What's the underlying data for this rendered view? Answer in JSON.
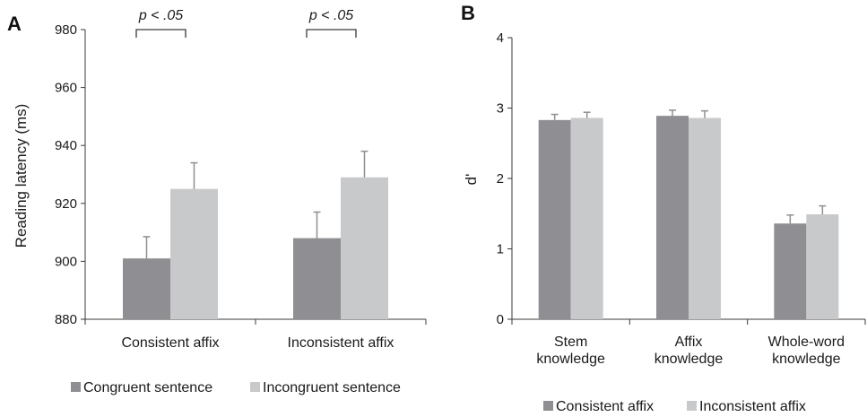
{
  "colors": {
    "dark": "#8f8f93",
    "light": "#c8c9cb",
    "axis": "#3a3a3a",
    "err": "#8f8f93"
  },
  "chart_data": [
    {
      "panel": "A",
      "type": "bar",
      "ylabel": "Reading latency (ms)",
      "ylim": [
        880,
        980
      ],
      "yticks": [
        880,
        900,
        920,
        940,
        960,
        980
      ],
      "categories": [
        "Consistent affix",
        "Inconsistent affix"
      ],
      "series": [
        {
          "name": "Congruent sentence",
          "values": [
            901,
            908
          ],
          "errors": [
            7.5,
            9
          ]
        },
        {
          "name": "Incongruent sentence",
          "values": [
            925,
            929
          ],
          "errors": [
            9,
            9
          ]
        }
      ],
      "annotations": [
        "p < .05",
        "p < .05"
      ],
      "legend": "bottom",
      "grid": false
    },
    {
      "panel": "B",
      "type": "bar",
      "ylabel": "d'",
      "ylim": [
        0,
        4
      ],
      "yticks": [
        0,
        1,
        2,
        3,
        4
      ],
      "categories": [
        [
          "Stem",
          "knowledge"
        ],
        [
          "Affix",
          "knowledge"
        ],
        [
          "Whole-word",
          "knowledge"
        ]
      ],
      "series": [
        {
          "name": "Consistent affix",
          "values": [
            2.83,
            2.89,
            1.36
          ],
          "errors": [
            0.08,
            0.08,
            0.12
          ]
        },
        {
          "name": "Inconsistent affix",
          "values": [
            2.86,
            2.86,
            1.49
          ],
          "errors": [
            0.08,
            0.1,
            0.12
          ]
        }
      ],
      "legend": "bottom",
      "grid": false
    }
  ]
}
